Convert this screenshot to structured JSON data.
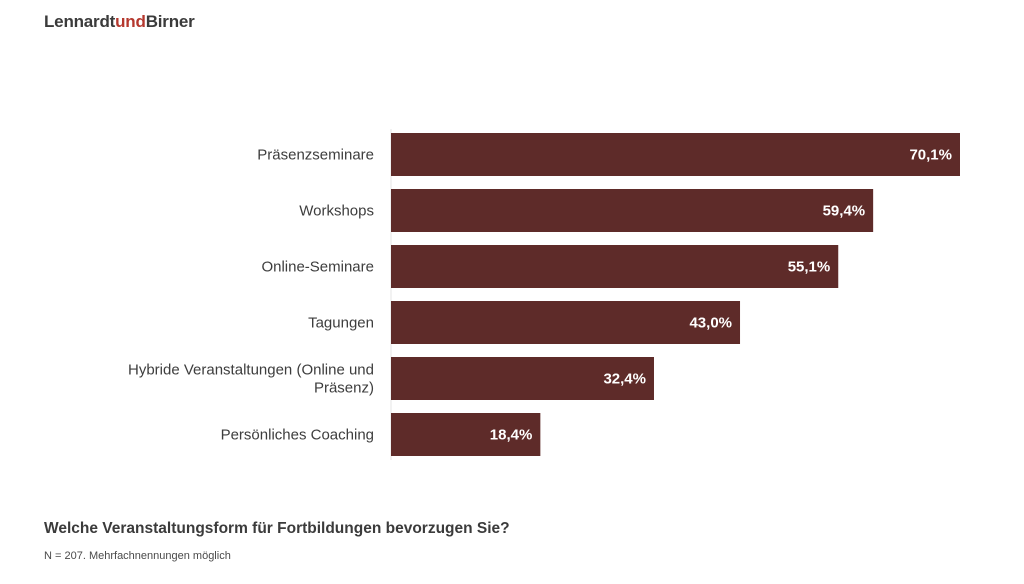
{
  "logo": {
    "part1": "Lennardt",
    "part2": "und",
    "part3": "Birner"
  },
  "chart_data": {
    "type": "bar",
    "orientation": "horizontal",
    "title": "Welche Veranstaltungsform für Fortbildungen bevorzugen Sie?",
    "note": "N = 207. Mehrfachnennungen möglich",
    "categories": [
      [
        "Präsenzseminare"
      ],
      [
        "Workshops"
      ],
      [
        "Online-Seminare"
      ],
      [
        "Tagungen"
      ],
      [
        "Hybride Veranstaltungen (Online und",
        "Präsenz)"
      ],
      [
        "Persönliches Coaching"
      ]
    ],
    "values": [
      70.1,
      59.4,
      55.1,
      43.0,
      32.4,
      18.4
    ],
    "value_labels": [
      "70,1%",
      "59,4%",
      "55,1%",
      "43,0%",
      "32,4%",
      "18,4%"
    ],
    "xlim": [
      0,
      70.1
    ],
    "bar_color": "#5e2b29",
    "grid": false
  }
}
